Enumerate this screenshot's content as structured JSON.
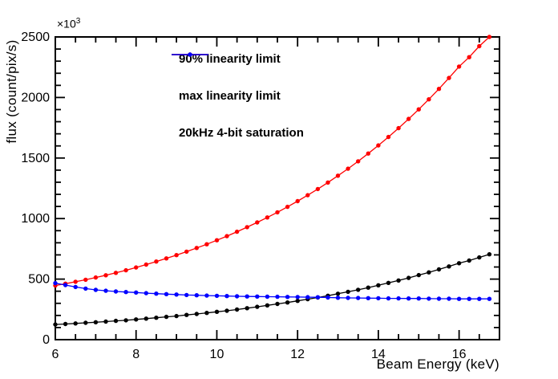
{
  "chart_data": {
    "type": "line",
    "title": "",
    "xlabel": "Beam Energy (keV)",
    "ylabel": "flux (count/pix/s)",
    "y_multiplier": {
      "base": "×10",
      "exp": "3"
    },
    "xlim": [
      6,
      17
    ],
    "ylim": [
      0,
      2500
    ],
    "x_major_ticks": [
      6,
      8,
      10,
      12,
      14,
      16
    ],
    "x_minor_step": 0.5,
    "y_major_ticks": [
      0,
      500,
      1000,
      1500,
      2000,
      2500
    ],
    "y_minor_step": 100,
    "grid": false,
    "legend_position": "top-left-inside",
    "frame_color": "#000000",
    "x": [
      6.0,
      6.25,
      6.5,
      6.75,
      7.0,
      7.25,
      7.5,
      7.75,
      8.0,
      8.25,
      8.5,
      8.75,
      9.0,
      9.25,
      9.5,
      9.75,
      10.0,
      10.25,
      10.5,
      10.75,
      11.0,
      11.25,
      11.5,
      11.75,
      12.0,
      12.25,
      12.5,
      12.75,
      13.0,
      13.25,
      13.5,
      13.75,
      14.0,
      14.25,
      14.5,
      14.75,
      15.0,
      15.25,
      15.5,
      15.75,
      16.0,
      16.25,
      16.5,
      16.75
    ],
    "series": [
      {
        "name": "90% linearity limit",
        "color": "#000000",
        "marker": "circle",
        "values": [
          125,
          129,
          134,
          139,
          144,
          149,
          155,
          160,
          167,
          174,
          181,
          188,
          195,
          204,
          212,
          221,
          230,
          239,
          249,
          260,
          271,
          283,
          295,
          307,
          320,
          334,
          348,
          363,
          379,
          395,
          412,
          430,
          449,
          469,
          489,
          510,
          533,
          556,
          580,
          605,
          631,
          653,
          679,
          705
        ]
      },
      {
        "name": "max linearity limit",
        "color": "#ff0000",
        "marker": "circle",
        "values": [
          447,
          462,
          478,
          495,
          513,
          532,
          552,
          573,
          596,
          620,
          645,
          671,
          698,
          727,
          757,
          788,
          821,
          855,
          891,
          929,
          968,
          1009,
          1052,
          1097,
          1144,
          1193,
          1244,
          1298,
          1354,
          1412,
          1473,
          1537,
          1604,
          1674,
          1747,
          1823,
          1902,
          1985,
          2071,
          2161,
          2255,
          2333,
          2424,
          2500
        ]
      },
      {
        "name": "20kHz 4-bit saturation",
        "color": "#0000ff",
        "marker": "circle",
        "values": [
          467,
          451,
          435,
          422,
          411,
          404,
          398,
          393,
          389,
          384,
          380,
          376,
          373,
          369,
          367,
          364,
          362,
          360,
          358,
          357,
          356,
          355,
          354,
          353,
          352,
          351,
          350,
          348,
          346,
          345,
          344,
          343,
          342,
          341,
          341,
          340,
          340,
          339,
          338,
          338,
          337,
          337,
          337,
          337
        ]
      }
    ]
  }
}
